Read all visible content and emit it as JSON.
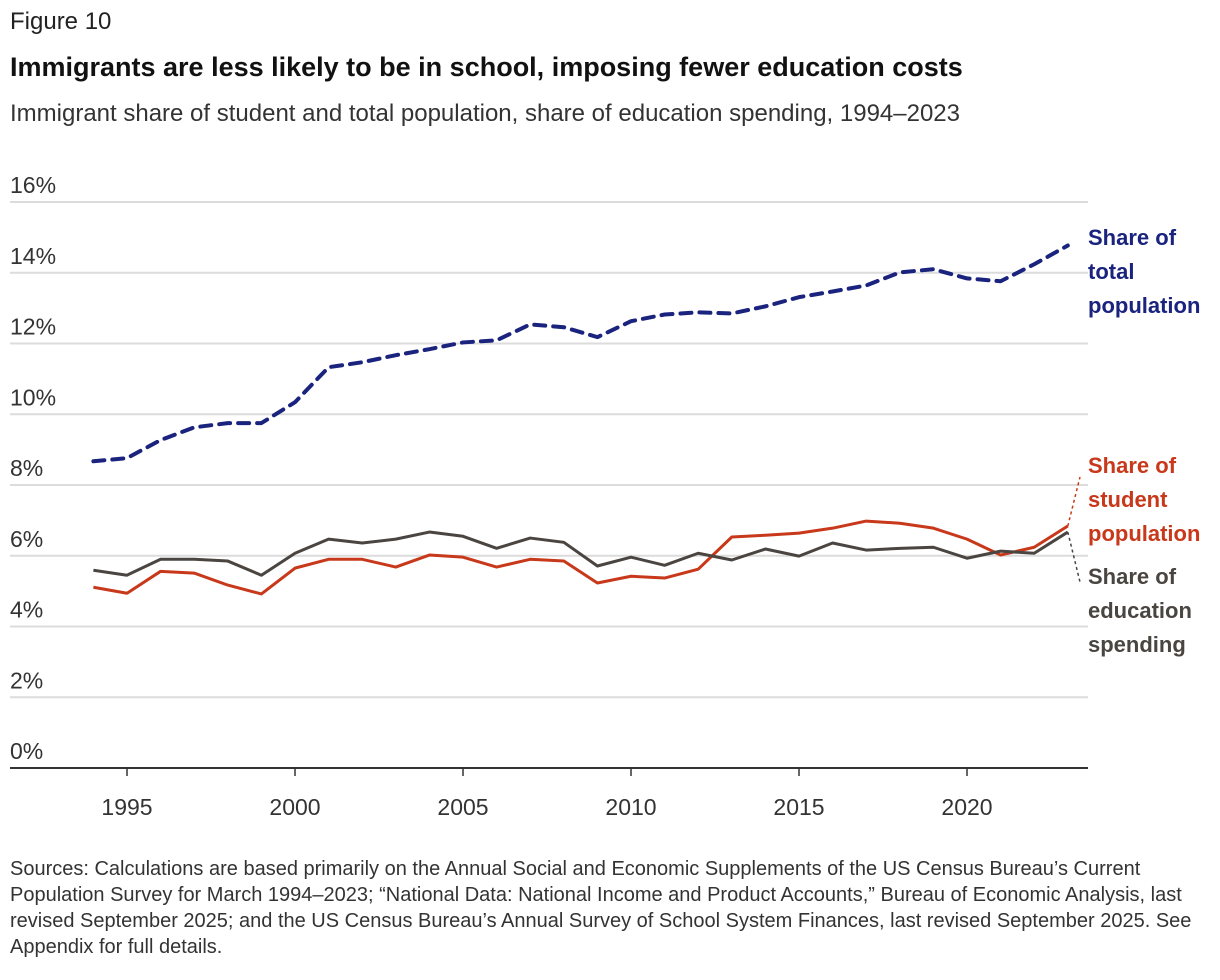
{
  "figure_label": "Figure 10",
  "title": "Immigrants are less likely to be in school, imposing fewer education costs",
  "subtitle": "Immigrant share of student and total population, share of education spending, 1994–2023",
  "sources": "Sources: Calculations are based primarily on the Annual Social and Economic Supplements of the US Census Bureau’s Current Population Survey for March 1994–2023; “National Data: National Income and Product Accounts,” Bureau of Economic Analysis, last revised September 2025; and the US Census Bureau’s Annual Survey of School System Finances, last revised September 2025. See Appendix for full details.",
  "chart_data": {
    "type": "line",
    "x": [
      1994,
      1995,
      1996,
      1997,
      1998,
      1999,
      2000,
      2001,
      2002,
      2003,
      2004,
      2005,
      2006,
      2007,
      2008,
      2009,
      2010,
      2011,
      2012,
      2013,
      2014,
      2015,
      2016,
      2017,
      2018,
      2019,
      2020,
      2021,
      2022,
      2023
    ],
    "xticks": [
      1995,
      2000,
      2005,
      2010,
      2015,
      2020
    ],
    "xtick_labels": [
      "1995",
      "2000",
      "2005",
      "2010",
      "2015",
      "2020"
    ],
    "yticks": [
      0,
      2,
      4,
      6,
      8,
      10,
      12,
      14,
      16
    ],
    "ytick_labels": [
      "0%",
      "2%",
      "4%",
      "6%",
      "8%",
      "10%",
      "12%",
      "14%",
      "16%"
    ],
    "ylim": [
      0,
      16
    ],
    "grid": "horizontal",
    "legend": "direct labels right",
    "series": [
      {
        "name": "Share of total population",
        "label_lines": [
          "Share of",
          "total",
          "population"
        ],
        "color": "#1a237e",
        "dash": "dashed",
        "values": [
          8.67,
          8.76,
          9.27,
          9.63,
          9.75,
          9.75,
          10.34,
          11.33,
          11.47,
          11.67,
          11.84,
          12.03,
          12.09,
          12.54,
          12.46,
          12.18,
          12.63,
          12.82,
          12.88,
          12.85,
          13.05,
          13.31,
          13.47,
          13.64,
          14.01,
          14.1,
          13.84,
          13.76,
          14.24,
          14.77
        ]
      },
      {
        "name": "Share of student population",
        "label_lines": [
          "Share of",
          "student",
          "population"
        ],
        "color": "#c8381a",
        "dash": "solid",
        "values": [
          5.11,
          4.94,
          5.56,
          5.51,
          5.17,
          4.92,
          5.65,
          5.9,
          5.9,
          5.68,
          6.02,
          5.96,
          5.68,
          5.9,
          5.85,
          5.23,
          5.42,
          5.37,
          5.62,
          6.53,
          6.58,
          6.64,
          6.78,
          6.98,
          6.92,
          6.78,
          6.47,
          6.02,
          6.24,
          6.84
        ]
      },
      {
        "name": "Share of education spending",
        "label_lines": [
          "Share of",
          "education",
          "spending"
        ],
        "color": "#4a4540",
        "dash": "solid",
        "values": [
          5.59,
          5.45,
          5.9,
          5.9,
          5.85,
          5.45,
          6.07,
          6.47,
          6.36,
          6.47,
          6.67,
          6.55,
          6.21,
          6.5,
          6.38,
          5.71,
          5.96,
          5.73,
          6.07,
          5.88,
          6.19,
          5.99,
          6.36,
          6.16,
          6.21,
          6.24,
          5.93,
          6.13,
          6.07,
          6.67
        ]
      }
    ]
  }
}
